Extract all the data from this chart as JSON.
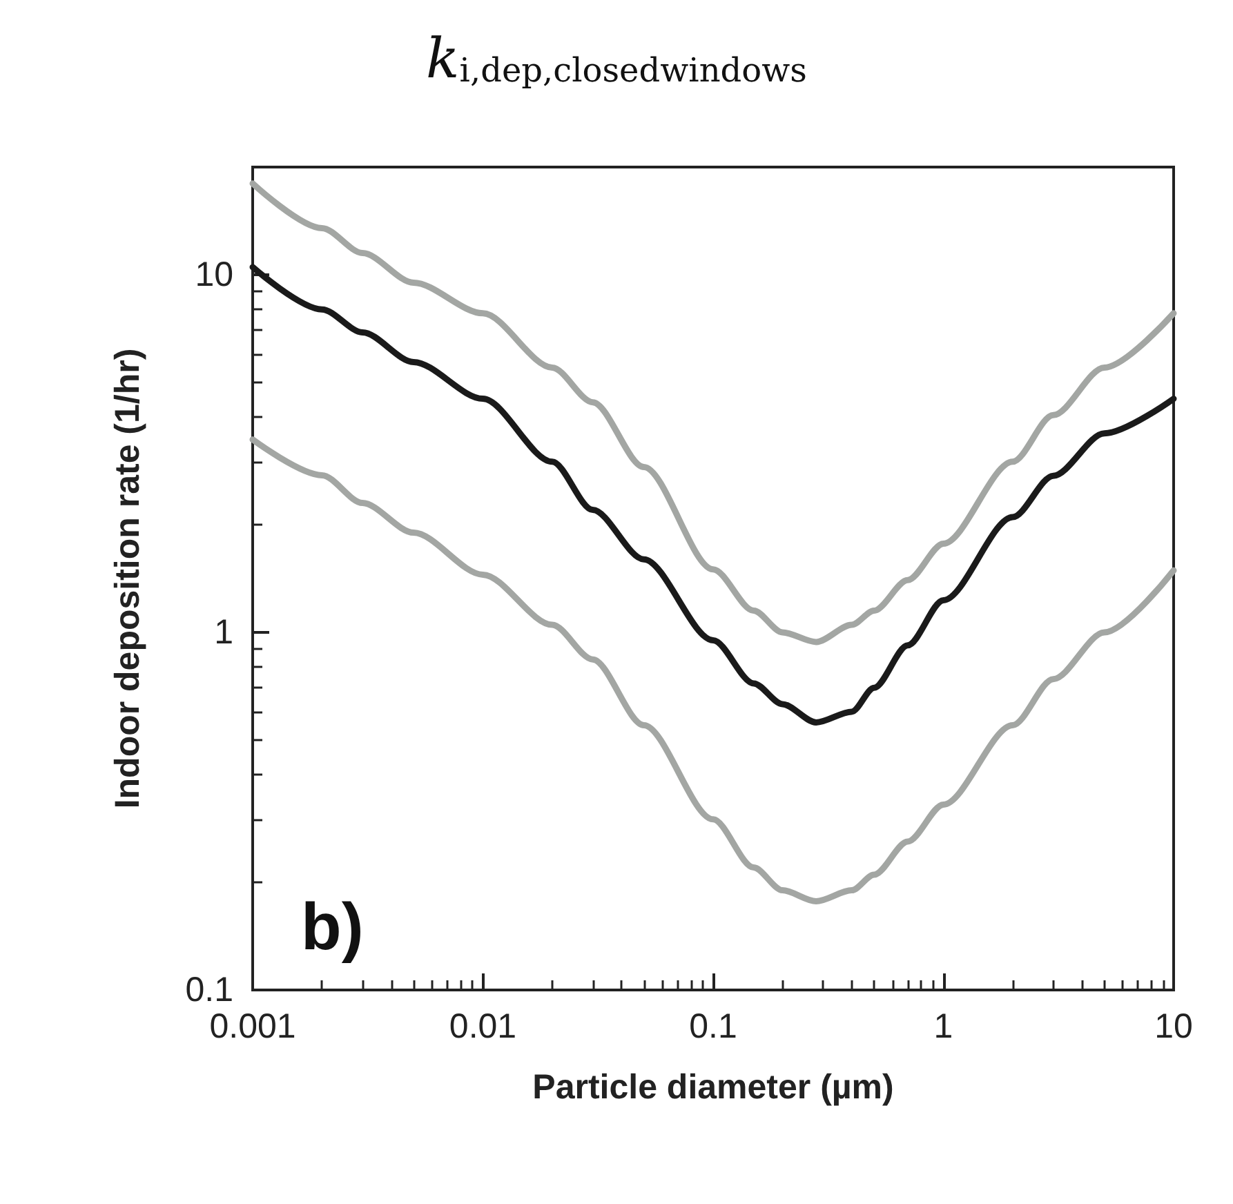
{
  "chart_data": {
    "type": "line",
    "title": "k$_{i,dep,closedwindows}$",
    "xlabel": "Particle diameter (µm)",
    "ylabel": "Indoor deposition rate (1/hr)",
    "annotations": [
      "b)"
    ],
    "log": "xy",
    "marker": "none",
    "line_style": "solid",
    "xlim": [
      0.001,
      10
    ],
    "ylim": [
      0.1,
      20
    ],
    "xticks": [
      0.001,
      0.01,
      0.1,
      1,
      10
    ],
    "yticks": [
      0.1,
      1,
      10
    ],
    "x": [
      0.001,
      0.002,
      0.003,
      0.005,
      0.01,
      0.02,
      0.03,
      0.05,
      0.1,
      0.15,
      0.2,
      0.28,
      0.4,
      0.5,
      0.7,
      1,
      2,
      3,
      5,
      10
    ],
    "series": [
      {
        "color": "#a3a6a3",
        "values": [
          18,
          13.5,
          11.5,
          9.5,
          7.8,
          5.5,
          4.4,
          2.9,
          1.5,
          1.15,
          1.0,
          0.94,
          1.05,
          1.15,
          1.4,
          1.77,
          3.0,
          4.05,
          5.5,
          7.8
        ]
      },
      {
        "color": "#1a1a1a",
        "values": [
          10.5,
          8.0,
          6.9,
          5.7,
          4.5,
          3.0,
          2.2,
          1.6,
          0.95,
          0.72,
          0.63,
          0.56,
          0.6,
          0.7,
          0.92,
          1.23,
          2.1,
          2.74,
          3.6,
          4.5
        ]
      },
      {
        "color": "#a3a6a3",
        "values": [
          3.46,
          2.75,
          2.3,
          1.9,
          1.45,
          1.05,
          0.84,
          0.55,
          0.3,
          0.22,
          0.19,
          0.177,
          0.19,
          0.21,
          0.26,
          0.33,
          0.55,
          0.74,
          1.0,
          1.49
        ]
      }
    ]
  }
}
